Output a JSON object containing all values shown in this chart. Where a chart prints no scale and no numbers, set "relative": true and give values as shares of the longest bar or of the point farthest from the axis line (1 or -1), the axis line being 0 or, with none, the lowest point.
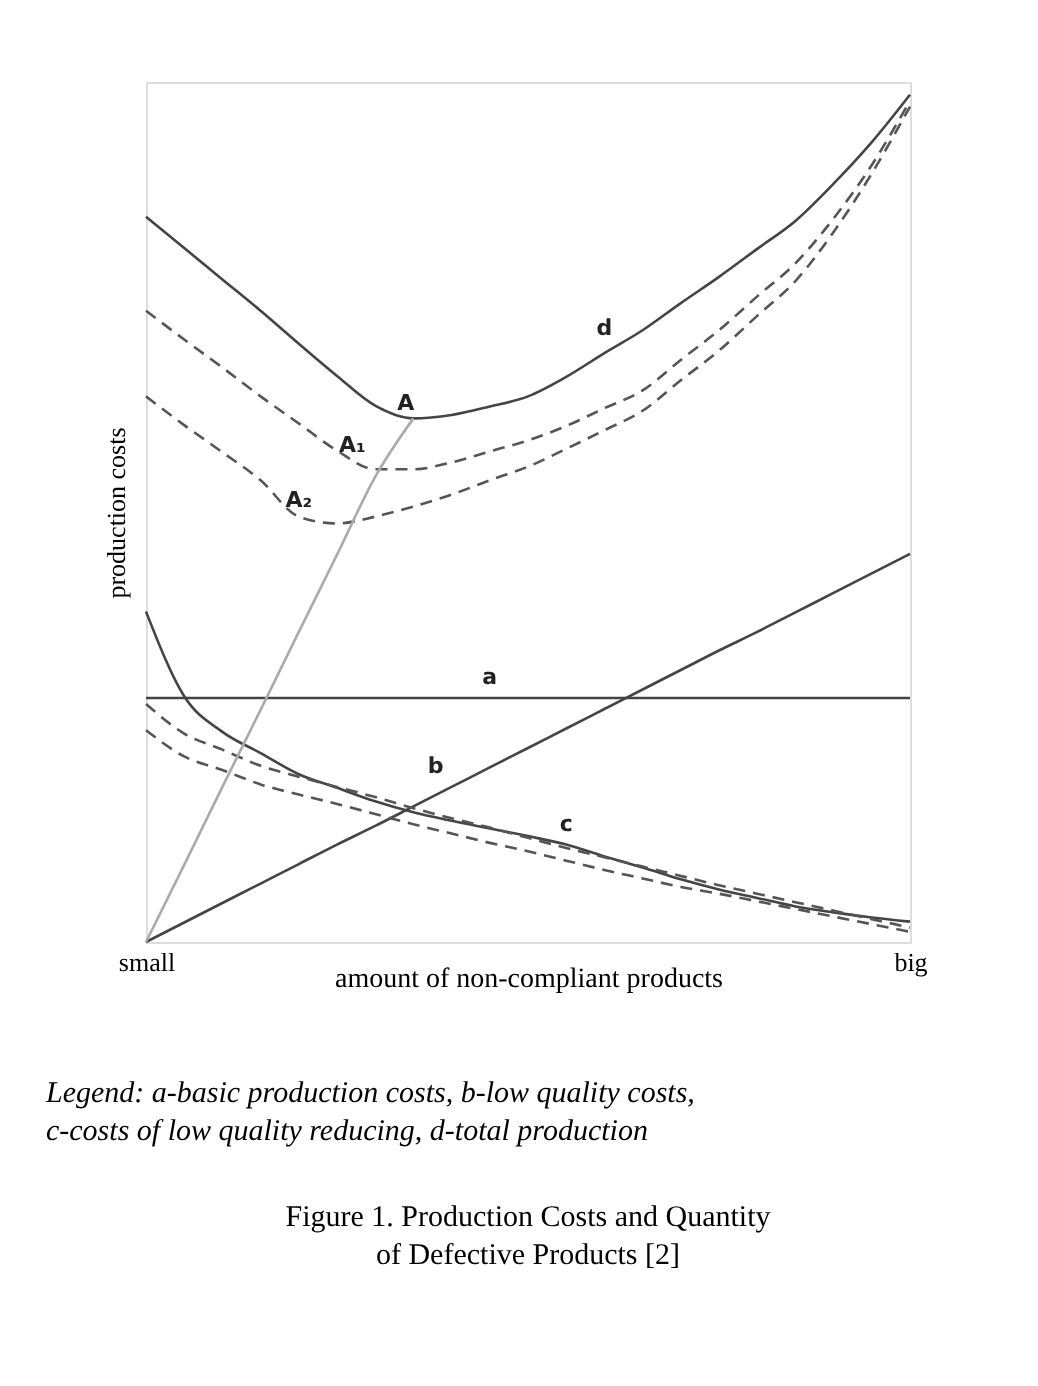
{
  "chart_data": {
    "type": "line",
    "relative": true,
    "title": "Figure 1.    Production Costs and Quantity of Defective Products [2]",
    "xlabel": "amount of non-compliant products",
    "ylabel": "production costs",
    "categories": [
      "small",
      null,
      null,
      null,
      null,
      null,
      null,
      null,
      null,
      null,
      null,
      null,
      null,
      null,
      null,
      null,
      null,
      null,
      null,
      null,
      "big"
    ],
    "tick_labels": "x",
    "grid": false,
    "marker": "none",
    "series": [
      {
        "name": "d",
        "color": "#444444",
        "line_style": "solid",
        "values": [
          0.856,
          0.819,
          0.782,
          0.745,
          0.706,
          0.668,
          0.633,
          0.618,
          0.622,
          0.632,
          0.644,
          0.667,
          0.695,
          0.722,
          0.754,
          0.785,
          0.818,
          0.851,
          0.895,
          0.944,
          1.0
        ]
      },
      {
        "color": "#555555",
        "line_style": "dashed",
        "values": [
          0.745,
          0.711,
          0.678,
          0.644,
          0.612,
          0.58,
          0.558,
          0.558,
          0.566,
          0.579,
          0.592,
          0.609,
          0.63,
          0.651,
          0.687,
          0.722,
          0.762,
          0.801,
          0.854,
          0.917,
          0.993
        ]
      },
      {
        "color": "#555555",
        "line_style": "dashed",
        "values": [
          0.644,
          0.61,
          0.578,
          0.545,
          0.502,
          0.494,
          0.502,
          0.514,
          0.528,
          0.545,
          0.561,
          0.582,
          0.604,
          0.627,
          0.663,
          0.698,
          0.739,
          0.78,
          0.838,
          0.907,
          0.986
        ]
      },
      {
        "name": "a",
        "color": "#444444",
        "line_style": "solid",
        "values": [
          0.288,
          0.288,
          0.288,
          0.288,
          0.288,
          0.288,
          0.288,
          0.288,
          0.288,
          0.288,
          0.288,
          0.288,
          0.288,
          0.288,
          0.288,
          0.288,
          0.288,
          0.288,
          0.288,
          0.288,
          0.288
        ]
      },
      {
        "name": "b",
        "color": "#444444",
        "line_style": "solid",
        "values": [
          0,
          0.023,
          0.046,
          0.069,
          0.092,
          0.115,
          0.137,
          0.16,
          0.183,
          0.206,
          0.229,
          0.252,
          0.275,
          0.298,
          0.321,
          0.344,
          0.366,
          0.389,
          0.412,
          0.435,
          0.458
        ]
      },
      {
        "name": "c",
        "color": "#444444",
        "line_style": "solid",
        "values": [
          0.39,
          0.29,
          0.248,
          0.223,
          0.198,
          0.182,
          0.166,
          0.153,
          0.143,
          0.134,
          0.125,
          0.115,
          0.101,
          0.088,
          0.074,
          0.062,
          0.052,
          0.042,
          0.035,
          0.029,
          0.024
        ]
      },
      {
        "color": "#555555",
        "line_style": "dashed",
        "values": [
          0.281,
          0.246,
          0.227,
          0.208,
          0.195,
          0.183,
          0.171,
          0.158,
          0.146,
          0.135,
          0.123,
          0.111,
          0.1,
          0.089,
          0.078,
          0.067,
          0.057,
          0.047,
          0.037,
          0.027,
          0.017
        ]
      },
      {
        "color": "#555555",
        "line_style": "dashed",
        "values": [
          0.25,
          0.219,
          0.203,
          0.186,
          0.174,
          0.163,
          0.151,
          0.139,
          0.128,
          0.117,
          0.107,
          0.096,
          0.085,
          0.075,
          0.065,
          0.057,
          0.048,
          0.039,
          0.03,
          0.021,
          0.012
        ]
      },
      {
        "color": "#aaaaaa",
        "line_style": "solid",
        "values": [
          0,
          0.091,
          0.183,
          0.274,
          0.366,
          0.457,
          0.549,
          0.618,
          null,
          null,
          null,
          null,
          null,
          null,
          null,
          null,
          null,
          null,
          null,
          null,
          null
        ]
      }
    ],
    "annotations": [
      "A",
      "A₁",
      "A₂",
      "Legend: a-basic production costs, b-low quality costs, c-costs of low quality reducing, d-total production"
    ]
  }
}
